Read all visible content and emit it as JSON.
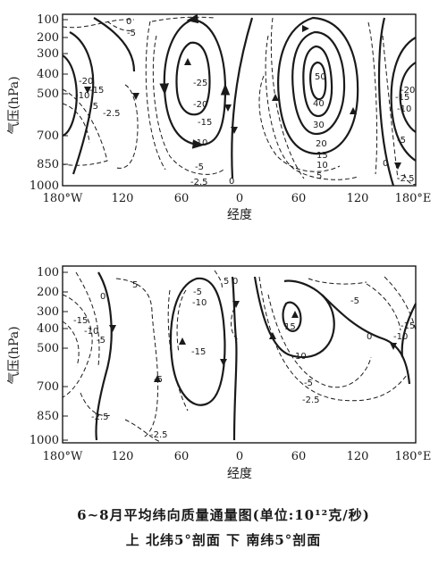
{
  "y_axis_label": "气压(hPa)",
  "x_axis_label": "经度",
  "pressure_levels": [
    "100",
    "200",
    "300",
    "400",
    "500",
    "700",
    "850",
    "1000"
  ],
  "longitude_ticks": [
    "180°W",
    "120",
    "60",
    "0",
    "60",
    "120",
    "180°E"
  ],
  "caption": {
    "line1": "6~8月平均纬向质量通量图(单位:10¹²克/秒)",
    "line2": "上 北纬5°剖面   下 南纬5°剖面"
  },
  "top_panel": {
    "contour_labels": [
      "0",
      "-5",
      "-20",
      "-15",
      "-10",
      "-5",
      "-2.5",
      "-25",
      "-20",
      "-15",
      "-10",
      "-5",
      "-2.5",
      "0",
      "50",
      "40",
      "30",
      "20",
      "15",
      "10",
      "5",
      "0",
      "-2.5",
      "-5",
      "-10",
      "-15",
      "-20"
    ]
  },
  "bottom_panel": {
    "contour_labels": [
      "-15",
      "-10",
      "-5",
      "-2.5",
      "-2.5",
      "0",
      "5",
      "-5",
      "-10",
      "-15",
      "-5",
      "0",
      "5",
      "15",
      "10",
      "-5",
      "-2.5",
      "0",
      "-5",
      "-10",
      "-15"
    ]
  }
}
